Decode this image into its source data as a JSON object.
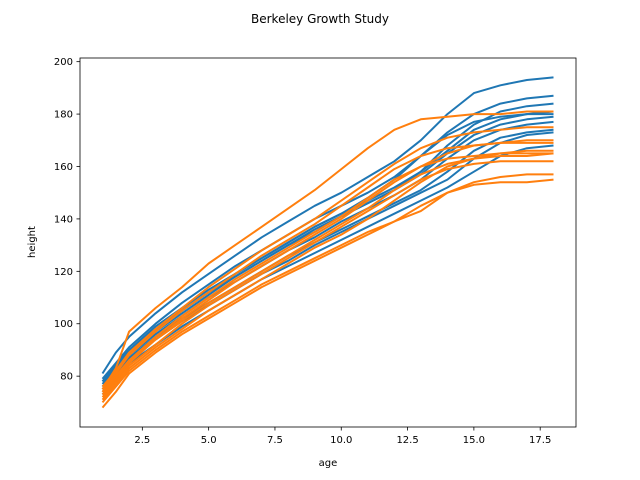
{
  "chart_data": {
    "type": "line",
    "title": "Berkeley Growth Study",
    "xlabel": "age",
    "ylabel": "height",
    "xlim": [
      0.15,
      18.85
    ],
    "ylim": [
      60.6,
      201.4
    ],
    "xticks": [
      2.5,
      5.0,
      7.5,
      10.0,
      12.5,
      15.0,
      17.5
    ],
    "xtick_labels": [
      "2.5",
      "5.0",
      "7.5",
      "10.0",
      "12.5",
      "15.0",
      "17.5"
    ],
    "yticks": [
      80,
      100,
      120,
      140,
      160,
      180,
      200
    ],
    "ytick_labels": [
      "80",
      "100",
      "120",
      "140",
      "160",
      "180",
      "200"
    ],
    "grid": false,
    "colors": {
      "boys": "#1f77b4",
      "girls": "#ff7f0e"
    },
    "x": [
      1,
      1.5,
      2,
      3,
      4,
      5,
      6,
      7,
      8,
      9,
      10,
      11,
      12,
      13,
      14,
      15,
      16,
      17,
      18
    ],
    "series_groups": [
      {
        "color": "#1f77b4",
        "series": [
          [
            81,
            89,
            95,
            104,
            112,
            119,
            126,
            133,
            139,
            145,
            150,
            156,
            162,
            170,
            180,
            188,
            191,
            193,
            194
          ],
          [
            78,
            84,
            90,
            99,
            106,
            113,
            119,
            125,
            131,
            137,
            142,
            147,
            152,
            158,
            168,
            176,
            181,
            183,
            184
          ],
          [
            76,
            82,
            88,
            96,
            103,
            110,
            116,
            122,
            128,
            133,
            139,
            144,
            149,
            155,
            163,
            170,
            174,
            176,
            177
          ],
          [
            74,
            80,
            86,
            94,
            101,
            107,
            113,
            119,
            124,
            130,
            135,
            140,
            145,
            150,
            155,
            163,
            169,
            172,
            173
          ],
          [
            77,
            83,
            89,
            97,
            104,
            111,
            118,
            124,
            130,
            136,
            141,
            146,
            151,
            158,
            166,
            174,
            178,
            180,
            181
          ],
          [
            75,
            81,
            87,
            95,
            102,
            108,
            114,
            120,
            126,
            131,
            136,
            141,
            146,
            151,
            158,
            166,
            171,
            173,
            174
          ],
          [
            79,
            85,
            91,
            100,
            108,
            115,
            122,
            128,
            134,
            140,
            145,
            150,
            156,
            164,
            173,
            180,
            184,
            186,
            187
          ],
          [
            73,
            79,
            85,
            92,
            99,
            105,
            111,
            117,
            122,
            127,
            132,
            137,
            142,
            147,
            152,
            158,
            164,
            167,
            168
          ],
          [
            76,
            82,
            88,
            97,
            105,
            112,
            119,
            125,
            131,
            137,
            142,
            148,
            155,
            164,
            172,
            177,
            179,
            180,
            180
          ],
          [
            78,
            84,
            90,
            98,
            105,
            112,
            118,
            124,
            130,
            135,
            141,
            146,
            151,
            157,
            165,
            172,
            176,
            178,
            179
          ]
        ]
      },
      {
        "color": "#ff7f0e",
        "series": [
          [
            75,
            83,
            97,
            106,
            114,
            123,
            130,
            137,
            144,
            151,
            159,
            167,
            174,
            178,
            179,
            180,
            180,
            181,
            181
          ],
          [
            74,
            80,
            86,
            95,
            103,
            110,
            117,
            123,
            129,
            135,
            141,
            148,
            155,
            160,
            163,
            164,
            165,
            165,
            165
          ],
          [
            72,
            78,
            84,
            92,
            100,
            107,
            113,
            119,
            125,
            131,
            137,
            143,
            149,
            155,
            159,
            161,
            162,
            162,
            162
          ],
          [
            70,
            76,
            82,
            90,
            97,
            103,
            109,
            115,
            120,
            125,
            130,
            135,
            139,
            143,
            150,
            153,
            154,
            154,
            155
          ],
          [
            73,
            79,
            85,
            94,
            102,
            109,
            116,
            122,
            128,
            134,
            140,
            147,
            154,
            160,
            165,
            168,
            169,
            170,
            170
          ],
          [
            68,
            74,
            81,
            89,
            96,
            102,
            108,
            114,
            119,
            124,
            129,
            134,
            139,
            145,
            150,
            154,
            156,
            157,
            157
          ],
          [
            75,
            81,
            88,
            97,
            105,
            112,
            119,
            126,
            132,
            138,
            145,
            152,
            159,
            164,
            167,
            168,
            169,
            169,
            169
          ],
          [
            71,
            77,
            83,
            91,
            98,
            105,
            111,
            117,
            123,
            129,
            134,
            140,
            147,
            154,
            160,
            163,
            165,
            166,
            166
          ],
          [
            74,
            80,
            86,
            94,
            101,
            108,
            114,
            120,
            126,
            132,
            138,
            144,
            151,
            157,
            161,
            163,
            164,
            164,
            165
          ],
          [
            76,
            82,
            89,
            98,
            106,
            114,
            121,
            128,
            134,
            140,
            147,
            154,
            161,
            167,
            171,
            173,
            174,
            175,
            175
          ]
        ]
      }
    ]
  }
}
